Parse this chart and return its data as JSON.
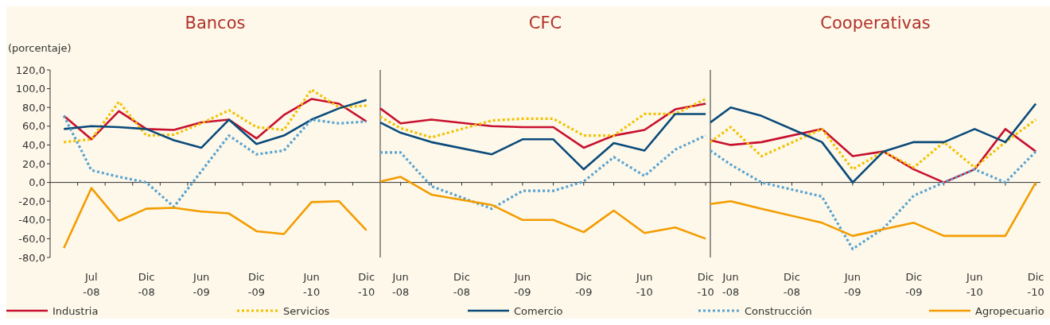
{
  "chart_data": [
    {
      "type": "line",
      "title": "Bancos",
      "ylabel": "(porcentaje)",
      "legend": "bottom",
      "categories": [
        null,
        "Jul -08",
        null,
        "Dic -08",
        null,
        "Jun -09",
        null,
        "Dic -09",
        null,
        "Jun -10",
        null,
        "Dic -10"
      ],
      "ylim": [
        -80,
        120
      ],
      "yticks": [
        {
          "value": -80,
          "label": "-80,0"
        },
        {
          "value": -60,
          "label": "-60,0"
        },
        {
          "value": -40,
          "label": "-40,0"
        },
        {
          "value": -20,
          "label": "-20,0"
        },
        {
          "value": 0,
          "label": "0,0"
        },
        {
          "value": 20,
          "label": "20,0"
        },
        {
          "value": 40,
          "label": "40,0"
        },
        {
          "value": 60,
          "label": "60,0"
        },
        {
          "value": 80,
          "label": "80,0"
        },
        {
          "value": 100,
          "label": "100,0"
        },
        {
          "value": 120,
          "label": "120,0"
        }
      ],
      "series": [
        {
          "name": "Industria",
          "color": "#c8102e",
          "line_style": "solid",
          "values": [
            71,
            46,
            76,
            57,
            56,
            64,
            67,
            47,
            72,
            89,
            84,
            65
          ]
        },
        {
          "name": "Servicios",
          "color": "#f2c200",
          "line_style": "dotted",
          "values": [
            43,
            46,
            86,
            50,
            51,
            63,
            77,
            59,
            56,
            99,
            80,
            82
          ]
        },
        {
          "name": "Comercio",
          "color": "#0a4a7a",
          "line_style": "solid",
          "values": [
            57,
            60,
            59,
            57,
            45,
            37,
            67,
            41,
            50,
            67,
            79,
            88
          ]
        },
        {
          "name": "Construcción",
          "color": "#5ba3d0",
          "line_style": "dotted",
          "values": [
            71,
            13,
            6,
            0,
            -26,
            12,
            50,
            30,
            34,
            67,
            63,
            65
          ]
        },
        {
          "name": "Agropecuario",
          "color": "#f39c00",
          "line_style": "solid",
          "values": [
            -70,
            -6,
            -41,
            -28,
            -27,
            -31,
            -33,
            -52,
            -55,
            -21,
            -20,
            -51
          ]
        }
      ]
    },
    {
      "type": "line",
      "title": "CFC",
      "tick_labels": "x",
      "x": [
        "2008-04",
        "2008-06",
        "2008-09",
        "2009-03",
        "2009-06",
        "2009-09",
        "2009-12",
        "2010-03",
        "2010-06",
        "2010-09",
        "2010-12"
      ],
      "xlim": [
        "2008-04",
        "2010-12-15"
      ],
      "xticks": [
        {
          "value": "2008-06",
          "label": "Jun -08"
        },
        {
          "value": "2008-09",
          "label": null
        },
        {
          "value": "2008-12",
          "label": "Dic -08"
        },
        {
          "value": "2009-03",
          "label": null
        },
        {
          "value": "2009-06",
          "label": "Jun -09"
        },
        {
          "value": "2009-09",
          "label": null
        },
        {
          "value": "2009-12",
          "label": "Dic -09"
        },
        {
          "value": "2010-03",
          "label": null
        },
        {
          "value": "2010-06",
          "label": "Jun -10"
        },
        {
          "value": "2010-09",
          "label": null
        },
        {
          "value": "2010-12",
          "label": "Dic -10"
        }
      ],
      "ylim": [
        -80,
        120
      ],
      "series": [
        {
          "color": "#c8102e",
          "line_style": "solid",
          "values": [
            79,
            63,
            67,
            60,
            59,
            59,
            37,
            50,
            56,
            78,
            84
          ]
        },
        {
          "color": "#f2c200",
          "line_style": "dotted",
          "values": [
            70,
            58,
            48,
            66,
            68,
            68,
            50,
            50,
            73,
            73,
            89
          ]
        },
        {
          "color": "#0a4a7a",
          "line_style": "solid",
          "values": [
            64,
            53,
            43,
            30,
            46,
            46,
            14,
            42,
            34,
            73,
            73
          ]
        },
        {
          "color": "#5ba3d0",
          "line_style": "dotted",
          "values": [
            32,
            32,
            -4,
            -28,
            -9,
            -9,
            1,
            27,
            7,
            35,
            50
          ]
        },
        {
          "color": "#f39c00",
          "line_style": "solid",
          "values": [
            1,
            6,
            -13,
            -24,
            -40,
            -40,
            -53,
            -30,
            -54,
            -48,
            -60
          ]
        }
      ]
    },
    {
      "type": "line",
      "title": "Cooperativas",
      "tick_labels": "x",
      "x": [
        "2008-04",
        "2008-06",
        "2008-09",
        "2009-03",
        "2009-06",
        "2009-09",
        "2009-12",
        "2010-03",
        "2010-06",
        "2010-09",
        "2010-12"
      ],
      "xlim": [
        "2008-04",
        "2010-12-15"
      ],
      "xticks": [
        {
          "value": "2008-06",
          "label": "Jun -08"
        },
        {
          "value": "2008-09",
          "label": null
        },
        {
          "value": "2008-12",
          "label": "Dic -08"
        },
        {
          "value": "2009-03",
          "label": null
        },
        {
          "value": "2009-06",
          "label": "Jun -09"
        },
        {
          "value": "2009-09",
          "label": null
        },
        {
          "value": "2009-12",
          "label": "Dic -09"
        },
        {
          "value": "2010-03",
          "label": null
        },
        {
          "value": "2010-06",
          "label": "Jun -10"
        },
        {
          "value": "2010-09",
          "label": null
        },
        {
          "value": "2010-12",
          "label": "Dic -10"
        }
      ],
      "ylim": [
        -80,
        120
      ],
      "series": [
        {
          "color": "#c8102e",
          "line_style": "solid",
          "values": [
            45,
            40,
            43,
            57,
            28,
            33,
            14,
            0,
            14,
            57,
            33
          ]
        },
        {
          "color": "#f2c200",
          "line_style": "dotted",
          "values": [
            43,
            59,
            28,
            57,
            14,
            33,
            16,
            43,
            16,
            43,
            67
          ]
        },
        {
          "color": "#0a4a7a",
          "line_style": "solid",
          "values": [
            64,
            80,
            71,
            43,
            0,
            33,
            43,
            43,
            57,
            43,
            84
          ]
        },
        {
          "color": "#5ba3d0",
          "line_style": "dotted",
          "values": [
            34,
            19,
            0,
            -15,
            -71,
            -49,
            -14,
            0,
            14,
            0,
            33
          ]
        },
        {
          "color": "#f39c00",
          "line_style": "solid",
          "values": [
            -23,
            -20,
            -28,
            -43,
            -57,
            -50,
            -43,
            -57,
            -57,
            -57,
            0
          ]
        }
      ]
    }
  ]
}
